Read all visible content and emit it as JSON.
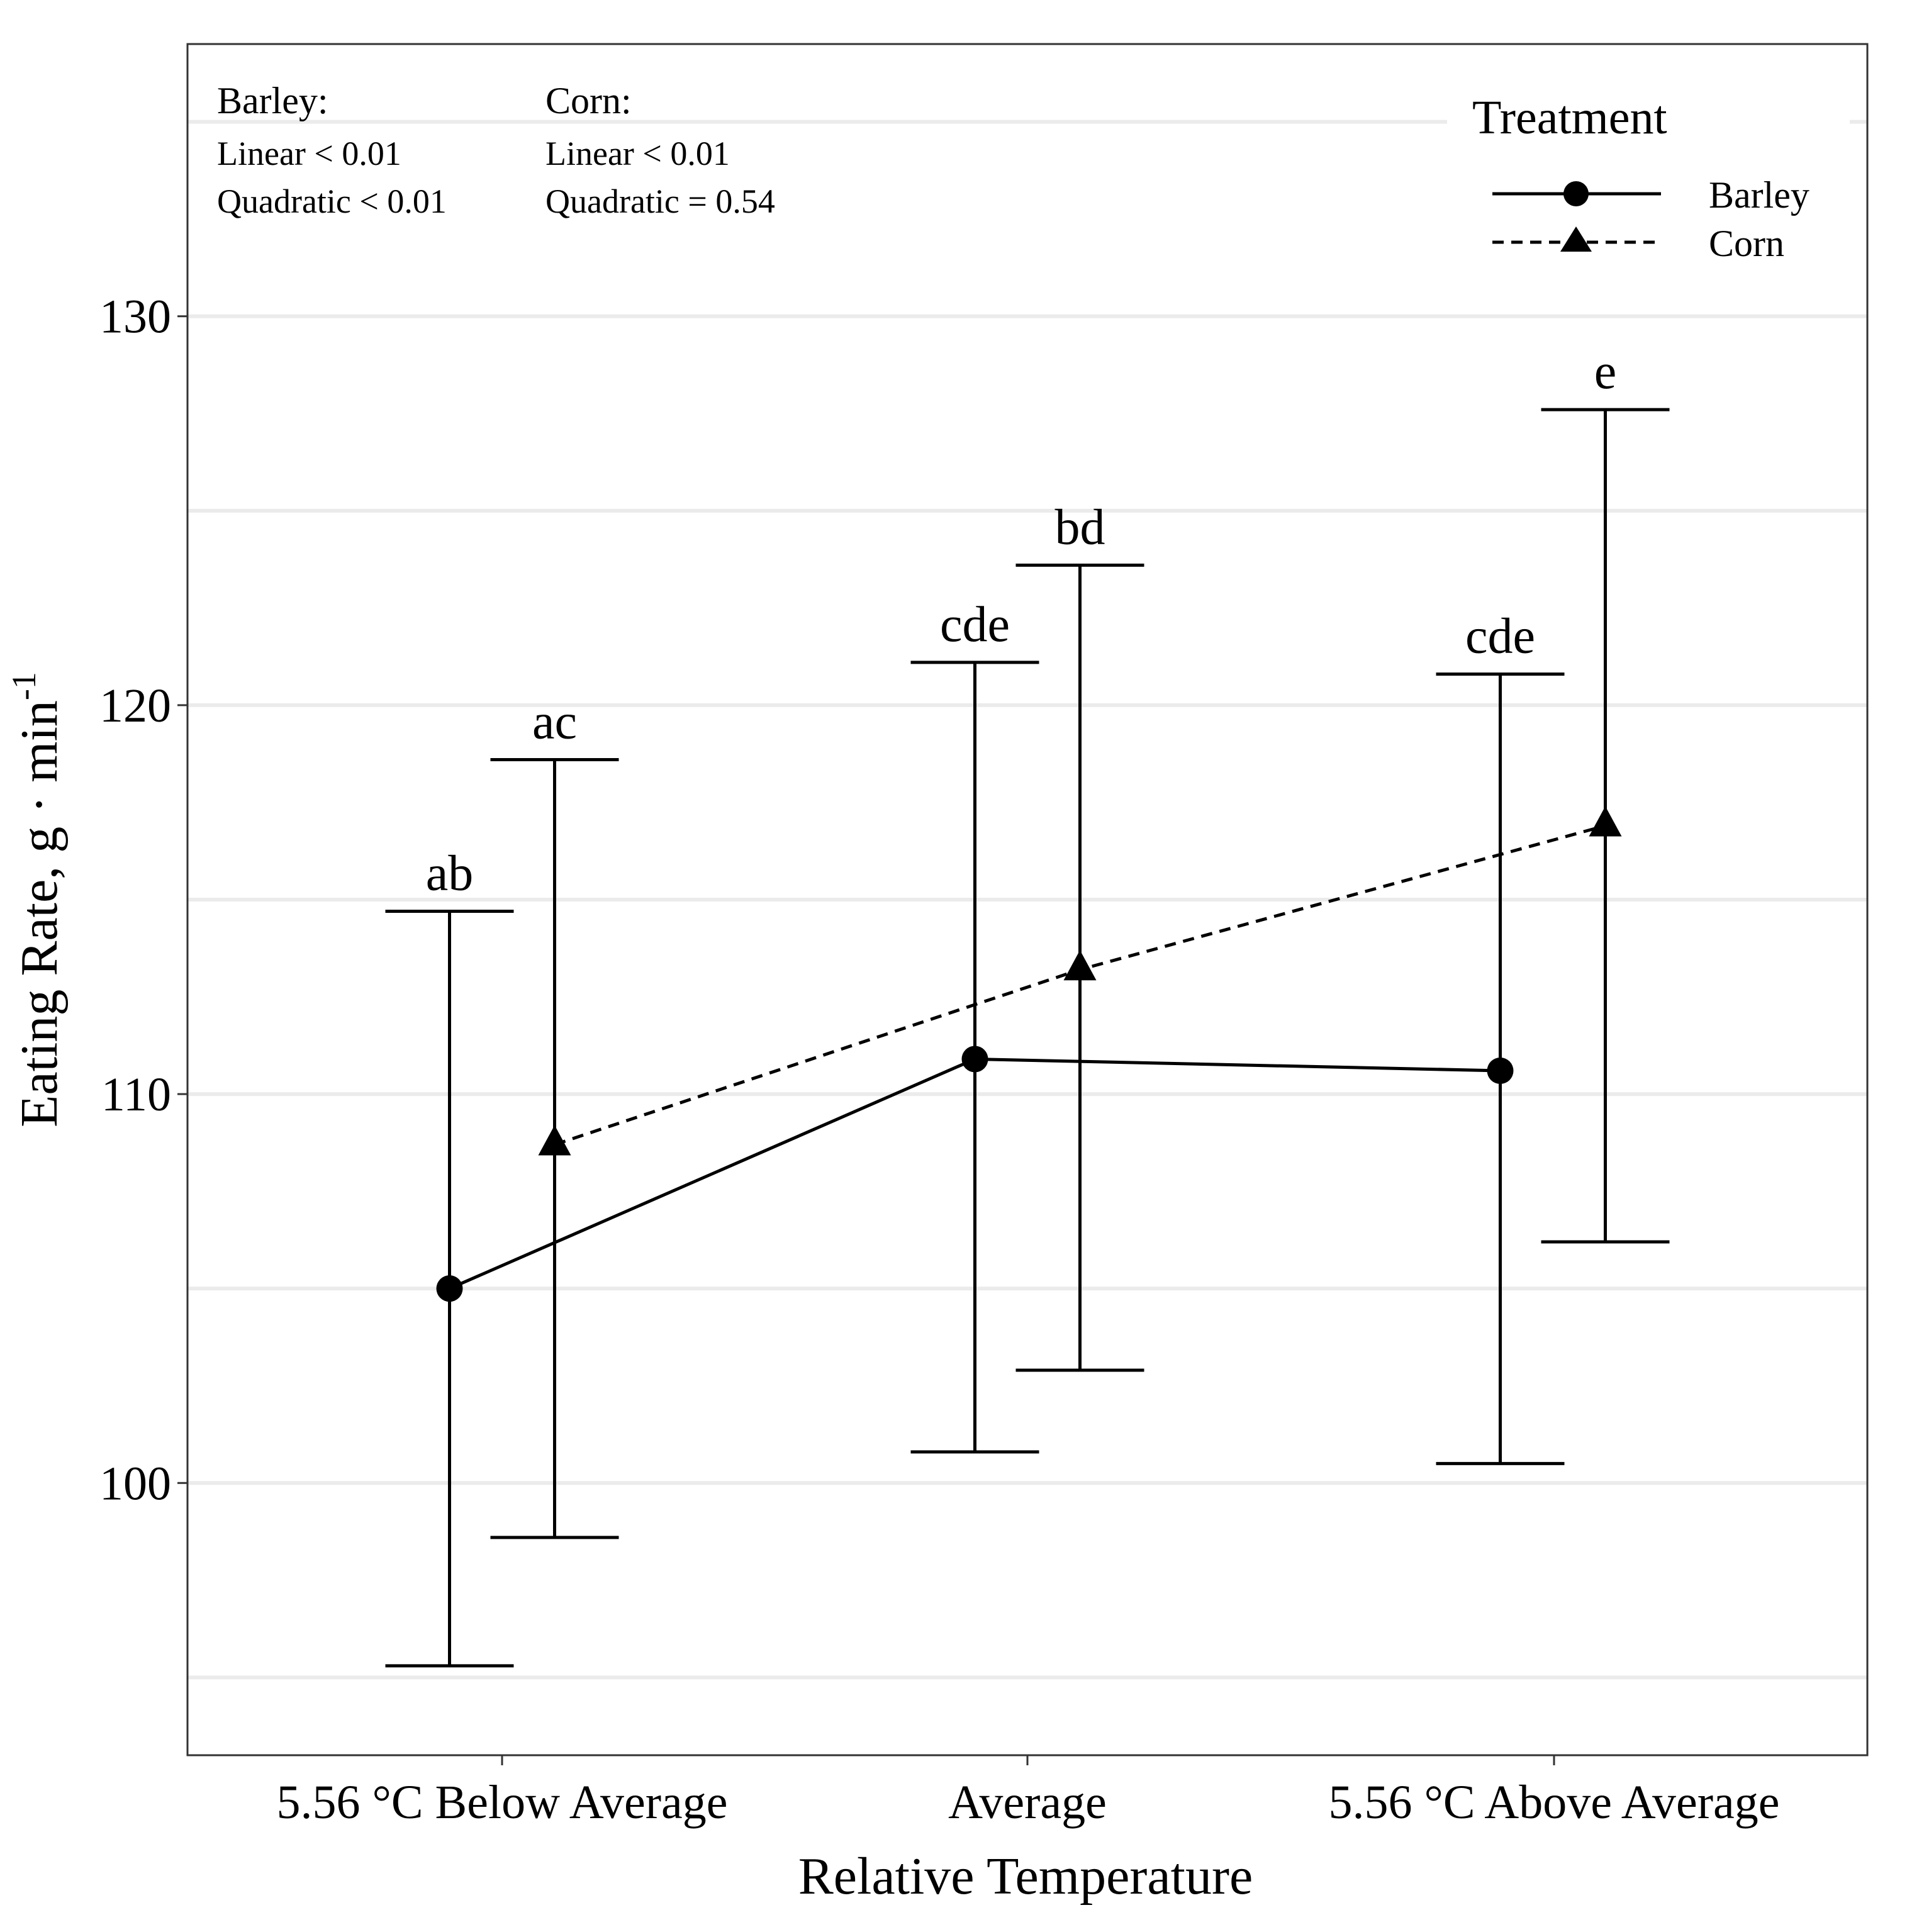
{
  "chart_data": {
    "type": "line",
    "xlabel": "Relative Temperature",
    "ylabel_main": "Eating Rate, g · min",
    "ylabel_sup": "-1",
    "categories": [
      "5.56 °C Below Average",
      "Average",
      "5.56 °C Above Average"
    ],
    "ylim": [
      93,
      137
    ],
    "yticks": [
      100,
      110,
      120,
      130
    ],
    "ytick_labels": [
      "100",
      "110",
      "120",
      "130"
    ],
    "grid": true,
    "series": [
      {
        "name": "Barley",
        "marker": "circle",
        "linestyle": "solid",
        "offset": -0.1,
        "values": [
          105.0,
          110.9,
          110.6
        ],
        "lower": [
          95.3,
          100.8,
          100.5
        ],
        "upper": [
          114.7,
          121.1,
          120.8
        ],
        "letters": [
          "ab",
          "cde",
          "cde"
        ]
      },
      {
        "name": "Corn",
        "marker": "triangle",
        "linestyle": "dashed",
        "offset": 0.1,
        "values": [
          108.7,
          113.2,
          116.9
        ],
        "lower": [
          98.6,
          102.9,
          106.2
        ],
        "upper": [
          118.6,
          123.6,
          127.6
        ],
        "letters": [
          "ac",
          "bd",
          "e"
        ]
      }
    ],
    "legend": {
      "title": "Treatment",
      "position": "top-right",
      "items": [
        "Barley",
        "Corn"
      ]
    },
    "annotations": {
      "barley": {
        "title": "Barley:",
        "linear": "Linear < 0.01",
        "quadratic": "Quadratic < 0.01"
      },
      "corn": {
        "title": "Corn:",
        "linear": "Linear < 0.01",
        "quadratic": "Quadratic = 0.54"
      }
    }
  }
}
